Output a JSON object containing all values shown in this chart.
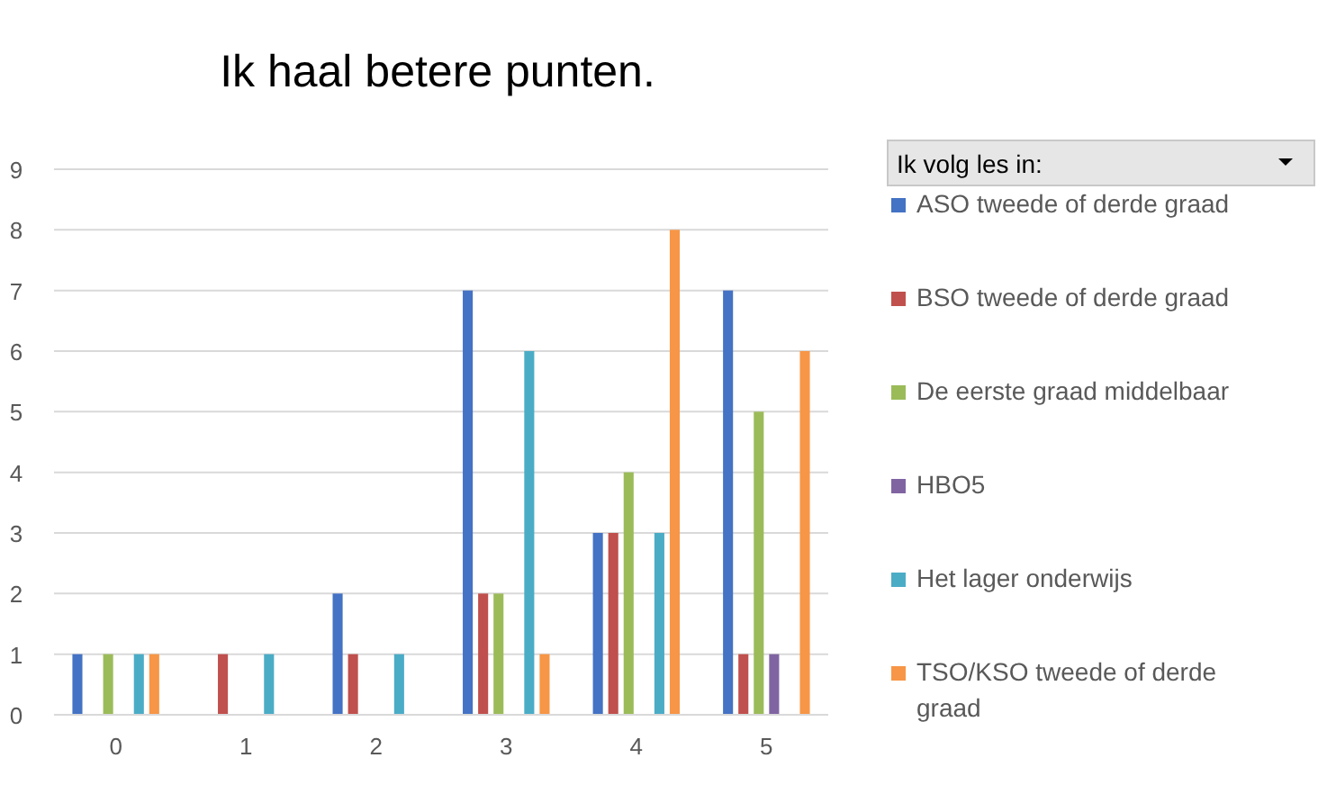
{
  "chart_data": {
    "type": "bar",
    "title": "Ik haal betere punten.",
    "legend_title": "Ik volg les in:",
    "categories": [
      "0",
      "1",
      "2",
      "3",
      "4",
      "5"
    ],
    "series": [
      {
        "name": "ASO tweede of derde graad",
        "color": "#4472c4",
        "values": [
          1,
          0,
          2,
          7,
          3,
          7
        ]
      },
      {
        "name": "BSO tweede of derde graad",
        "color": "#c0504d",
        "values": [
          0,
          1,
          1,
          2,
          3,
          1
        ]
      },
      {
        "name": "De eerste graad middelbaar",
        "color": "#9bbb59",
        "values": [
          1,
          0,
          0,
          2,
          4,
          5
        ]
      },
      {
        "name": "HBO5",
        "color": "#8064a2",
        "values": [
          0,
          0,
          0,
          0,
          0,
          1
        ]
      },
      {
        "name": "Het lager onderwijs",
        "color": "#4bacc6",
        "values": [
          1,
          1,
          1,
          6,
          3,
          0
        ]
      },
      {
        "name": "TSO/KSO tweede of derde graad",
        "color": "#f79646",
        "values": [
          1,
          0,
          0,
          1,
          8,
          6
        ]
      }
    ],
    "ylim": [
      0,
      9
    ],
    "yticks": [
      0,
      1,
      2,
      3,
      4,
      5,
      6,
      7,
      8,
      9
    ],
    "grid": "y",
    "legend": "right"
  }
}
